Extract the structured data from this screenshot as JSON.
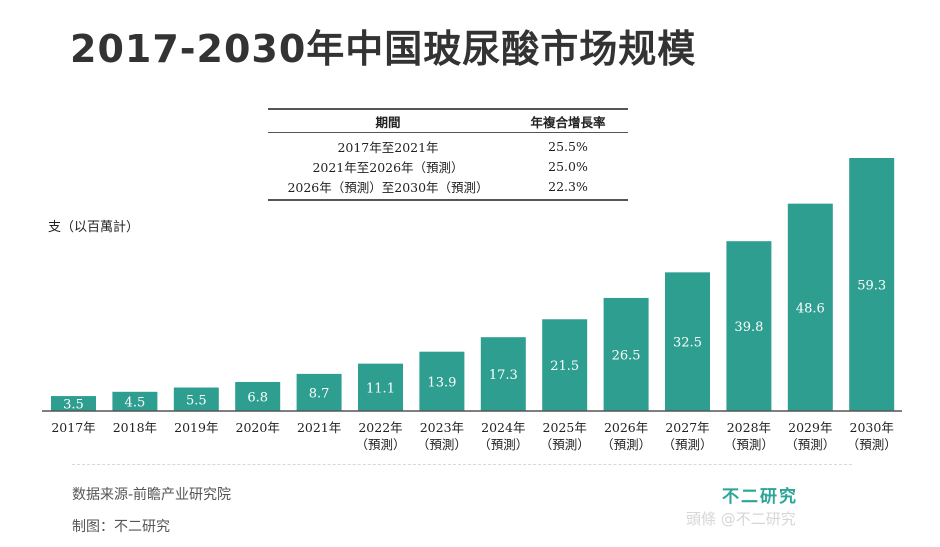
{
  "title": "2017-2030年中国玻尿酸市场规模",
  "cagr_table": {
    "headers": [
      "期間",
      "年複合增長率"
    ],
    "rows": [
      {
        "period": "2017年至2021年",
        "rate": "25.5%"
      },
      {
        "period": "2021年至2026年（預測）",
        "rate": "25.0%"
      },
      {
        "period": "2026年（預測）至2030年（預測）",
        "rate": "22.3%"
      }
    ]
  },
  "unit_label": "支（以百萬計）",
  "chart_data": {
    "type": "bar",
    "categories": [
      "2017年",
      "2018年",
      "2019年",
      "2020年",
      "2021年",
      "2022年",
      "2023年",
      "2024年",
      "2025年",
      "2026年",
      "2027年",
      "2028年",
      "2029年",
      "2030年"
    ],
    "category_sublabels": [
      "",
      "",
      "",
      "",
      "",
      "（預測）",
      "（預測）",
      "（預測）",
      "（預測）",
      "（預測）",
      "（預測）",
      "（預測）",
      "（預測）",
      "（預測）"
    ],
    "values": [
      3.5,
      4.5,
      5.5,
      6.8,
      8.7,
      11.1,
      13.9,
      17.3,
      21.5,
      26.5,
      32.5,
      39.8,
      48.6,
      59.3
    ],
    "value_labels": [
      "3.5",
      "4.5",
      "5.5",
      "6.8",
      "8.7",
      "11.1",
      "13.9",
      "17.3",
      "21.5",
      "26.5",
      "32.5",
      "39.8",
      "48.6",
      "59.3"
    ],
    "ylabel": "支（以百萬計）",
    "ylim": [
      0,
      59.3
    ],
    "bar_color": "#2e9e90",
    "grid": false
  },
  "footer": {
    "source": "数据来源-前瞻产业研究院",
    "credit": "制图：不二研究"
  },
  "logo_text": "不二研究",
  "watermark_text": "頭條 @不二研究"
}
